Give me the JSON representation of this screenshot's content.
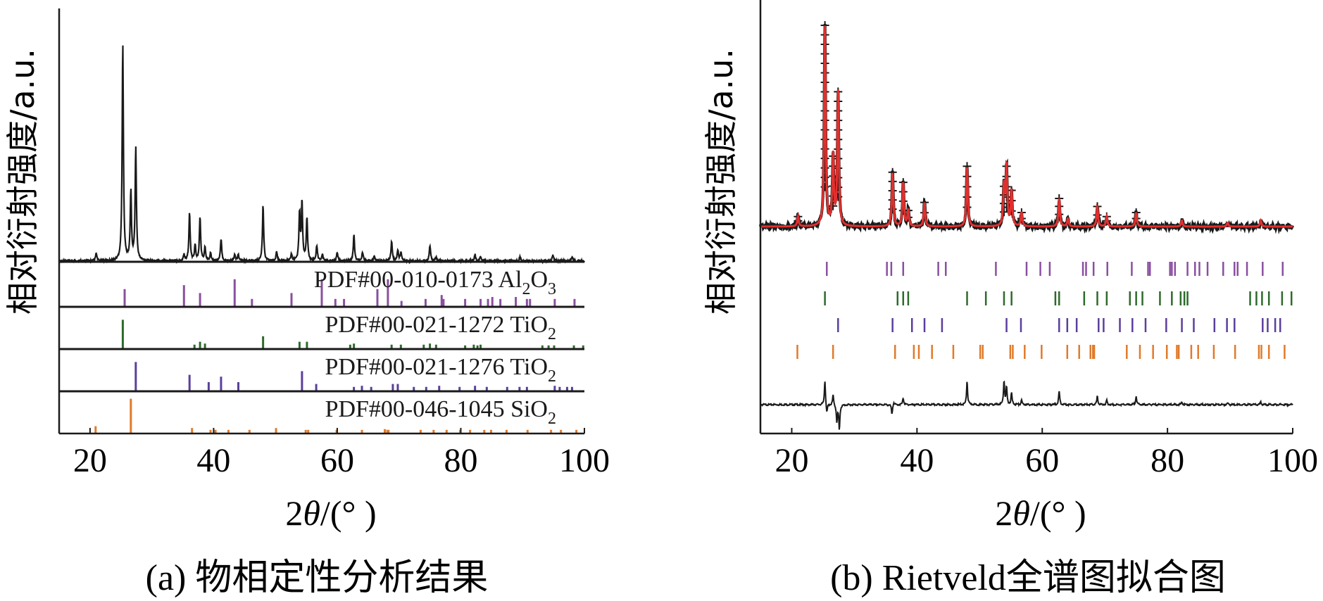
{
  "chart_data": [
    {
      "id": "a",
      "type": "line",
      "caption": "(a) 物相定性分析结果",
      "ylabel": "相对衍射强度/a.u.",
      "xlabel_parts": [
        "2",
        "θ",
        "/(°",
        " )"
      ],
      "xlim": [
        15,
        100
      ],
      "xticks": [
        20,
        40,
        60,
        80,
        100
      ],
      "pattern": {
        "peaks": [
          [
            21.0,
            0.035
          ],
          [
            25.3,
            1.0
          ],
          [
            26.6,
            0.32
          ],
          [
            27.4,
            0.52
          ],
          [
            35.2,
            0.03
          ],
          [
            36.1,
            0.22
          ],
          [
            37.0,
            0.07
          ],
          [
            37.8,
            0.2
          ],
          [
            38.6,
            0.06
          ],
          [
            39.5,
            0.04
          ],
          [
            41.2,
            0.1
          ],
          [
            43.4,
            0.03
          ],
          [
            44.0,
            0.03
          ],
          [
            48.0,
            0.26
          ],
          [
            50.2,
            0.04
          ],
          [
            52.6,
            0.03
          ],
          [
            53.9,
            0.22
          ],
          [
            54.3,
            0.27
          ],
          [
            55.1,
            0.2
          ],
          [
            56.7,
            0.07
          ],
          [
            57.6,
            0.03
          ],
          [
            60.0,
            0.04
          ],
          [
            62.7,
            0.12
          ],
          [
            64.1,
            0.04
          ],
          [
            66.0,
            0.02
          ],
          [
            68.8,
            0.09
          ],
          [
            69.8,
            0.05
          ],
          [
            70.3,
            0.04
          ],
          [
            75.0,
            0.07
          ],
          [
            76.0,
            0.02
          ],
          [
            82.3,
            0.03
          ],
          [
            83.2,
            0.02
          ],
          [
            89.6,
            0.02
          ],
          [
            94.9,
            0.03
          ],
          [
            98.0,
            0.02
          ]
        ]
      },
      "references": [
        {
          "label": "PDF#00-010-0173 Al",
          "formula_sub": "2",
          "formula_mid": "O",
          "formula_sub2": "3",
          "color": "#8a4fa0",
          "sticks": [
            [
              25.6,
              0.45
            ],
            [
              35.2,
              0.55
            ],
            [
              37.8,
              0.35
            ],
            [
              43.4,
              0.7
            ],
            [
              46.2,
              0.2
            ],
            [
              52.6,
              0.35
            ],
            [
              57.5,
              0.7
            ],
            [
              59.7,
              0.2
            ],
            [
              61.1,
              0.2
            ],
            [
              66.5,
              0.45
            ],
            [
              68.2,
              0.7
            ],
            [
              70.4,
              0.15
            ],
            [
              74.3,
              0.2
            ],
            [
              76.9,
              0.3
            ],
            [
              77.2,
              0.2
            ],
            [
              80.7,
              0.2
            ],
            [
              83.2,
              0.2
            ],
            [
              84.4,
              0.2
            ],
            [
              85.1,
              0.25
            ],
            [
              86.4,
              0.2
            ],
            [
              88.9,
              0.25
            ],
            [
              90.7,
              0.2
            ],
            [
              91.2,
              0.2
            ],
            [
              95.2,
              0.2
            ],
            [
              98.4,
              0.2
            ]
          ]
        },
        {
          "label": "PDF#00-021-1272 TiO",
          "formula_sub": "2",
          "formula_mid": "",
          "formula_sub2": "",
          "color": "#2d6b2a",
          "sticks": [
            [
              25.3,
              0.8
            ],
            [
              36.9,
              0.12
            ],
            [
              37.8,
              0.2
            ],
            [
              38.6,
              0.15
            ],
            [
              48.0,
              0.35
            ],
            [
              53.9,
              0.2
            ],
            [
              55.1,
              0.2
            ],
            [
              62.1,
              0.12
            ],
            [
              62.7,
              0.15
            ],
            [
              68.8,
              0.12
            ],
            [
              70.3,
              0.12
            ],
            [
              74.0,
              0.12
            ],
            [
              75.0,
              0.15
            ],
            [
              76.0,
              0.12
            ],
            [
              80.7,
              0.1
            ],
            [
              82.1,
              0.12
            ],
            [
              82.7,
              0.1
            ],
            [
              83.2,
              0.12
            ],
            [
              93.2,
              0.1
            ],
            [
              94.2,
              0.1
            ],
            [
              95.1,
              0.1
            ],
            [
              98.3,
              0.1
            ],
            [
              99.8,
              0.1
            ]
          ]
        },
        {
          "label": "PDF#00-021-1276 TiO",
          "formula_sub": "2",
          "formula_mid": "",
          "formula_sub2": "",
          "color": "#5a3f9c",
          "sticks": [
            [
              27.4,
              0.8
            ],
            [
              36.1,
              0.45
            ],
            [
              39.2,
              0.25
            ],
            [
              41.2,
              0.4
            ],
            [
              44.0,
              0.25
            ],
            [
              54.3,
              0.55
            ],
            [
              56.6,
              0.2
            ],
            [
              62.7,
              0.12
            ],
            [
              64.0,
              0.15
            ],
            [
              65.5,
              0.12
            ],
            [
              69.0,
              0.2
            ],
            [
              69.8,
              0.2
            ],
            [
              72.4,
              0.12
            ],
            [
              74.4,
              0.12
            ],
            [
              76.5,
              0.15
            ],
            [
              79.8,
              0.12
            ],
            [
              82.3,
              0.15
            ],
            [
              84.2,
              0.12
            ],
            [
              87.5,
              0.12
            ],
            [
              89.5,
              0.12
            ],
            [
              90.7,
              0.12
            ],
            [
              95.2,
              0.15
            ],
            [
              96.0,
              0.12
            ],
            [
              97.2,
              0.12
            ],
            [
              98.0,
              0.12
            ]
          ]
        },
        {
          "label": "PDF#00-046-1045 SiO",
          "formula_sub": "2",
          "formula_mid": "",
          "formula_sub2": "",
          "color": "#e07a2a",
          "sticks": [
            [
              20.9,
              0.2
            ],
            [
              26.6,
              0.95
            ],
            [
              36.5,
              0.15
            ],
            [
              39.5,
              0.1
            ],
            [
              40.3,
              0.1
            ],
            [
              42.4,
              0.1
            ],
            [
              45.8,
              0.1
            ],
            [
              50.1,
              0.15
            ],
            [
              54.9,
              0.1
            ],
            [
              55.3,
              0.1
            ],
            [
              59.9,
              0.1
            ],
            [
              64.0,
              0.1
            ],
            [
              67.7,
              0.12
            ],
            [
              68.1,
              0.1
            ],
            [
              68.3,
              0.1
            ],
            [
              73.5,
              0.1
            ],
            [
              75.6,
              0.1
            ],
            [
              77.7,
              0.1
            ],
            [
              79.9,
              0.1
            ],
            [
              81.5,
              0.1
            ],
            [
              83.8,
              0.1
            ],
            [
              84.9,
              0.1
            ],
            [
              87.4,
              0.1
            ],
            [
              90.8,
              0.1
            ],
            [
              94.6,
              0.1
            ],
            [
              96.2,
              0.1
            ],
            [
              98.7,
              0.1
            ]
          ]
        }
      ]
    },
    {
      "id": "b",
      "type": "line",
      "caption": "(b) Rietveld全谱图拟合图",
      "ylabel": "相对衍射强度/a.u.",
      "xlabel_parts": [
        "2",
        "θ",
        "/(°",
        " )"
      ],
      "xlim": [
        15,
        100
      ],
      "xticks": [
        20,
        40,
        60,
        80,
        100
      ],
      "observed_color": "#1a1a1a",
      "calculated_color": "#e0302e",
      "difference_color": "#1a1a1a",
      "pattern": {
        "peaks": [
          [
            21.0,
            0.05
          ],
          [
            25.3,
            1.0
          ],
          [
            26.6,
            0.35
          ],
          [
            27.4,
            0.67
          ],
          [
            36.1,
            0.27
          ],
          [
            37.8,
            0.22
          ],
          [
            38.6,
            0.08
          ],
          [
            41.2,
            0.12
          ],
          [
            48.0,
            0.3
          ],
          [
            53.9,
            0.2
          ],
          [
            54.3,
            0.3
          ],
          [
            55.1,
            0.18
          ],
          [
            56.7,
            0.07
          ],
          [
            62.7,
            0.14
          ],
          [
            64.1,
            0.04
          ],
          [
            68.8,
            0.1
          ],
          [
            70.3,
            0.05
          ],
          [
            75.0,
            0.07
          ],
          [
            82.3,
            0.03
          ],
          [
            89.6,
            0.02
          ],
          [
            94.9,
            0.03
          ]
        ]
      },
      "difference": [
        [
          25.3,
          0.3
        ],
        [
          25.6,
          -0.12
        ],
        [
          26.6,
          0.12
        ],
        [
          27.2,
          -0.2
        ],
        [
          27.6,
          -0.3
        ],
        [
          36.0,
          -0.12
        ],
        [
          36.3,
          0.04
        ],
        [
          37.8,
          0.08
        ],
        [
          48.0,
          0.28
        ],
        [
          53.9,
          0.28
        ],
        [
          54.3,
          0.2
        ],
        [
          55.1,
          0.14
        ],
        [
          56.7,
          0.05
        ],
        [
          62.7,
          0.16
        ],
        [
          68.8,
          0.1
        ],
        [
          70.3,
          0.05
        ],
        [
          75.0,
          0.1
        ],
        [
          82.3,
          0.03
        ],
        [
          89.6,
          0.02
        ],
        [
          94.9,
          0.03
        ]
      ],
      "tick_rows": [
        {
          "color": "#8a4fa0",
          "positions": [
            25.6,
            35.2,
            35.9,
            37.8,
            43.4,
            44.6,
            52.6,
            57.5,
            59.7,
            61.2,
            66.5,
            67.0,
            68.2,
            70.4,
            74.3,
            76.9,
            77.2,
            80.4,
            80.7,
            81.2,
            83.2,
            84.4,
            85.1,
            86.4,
            88.9,
            90.7,
            91.2,
            92.7,
            95.2,
            98.4
          ]
        },
        {
          "color": "#2d6b2a",
          "positions": [
            25.3,
            36.9,
            37.8,
            38.6,
            48.0,
            51.0,
            53.9,
            55.1,
            62.1,
            62.7,
            66.7,
            68.8,
            70.3,
            74.0,
            75.0,
            76.0,
            78.8,
            80.7,
            82.1,
            82.7,
            83.2,
            93.2,
            94.2,
            95.1,
            96.2,
            98.3,
            99.8
          ]
        },
        {
          "color": "#5a3f9c",
          "positions": [
            27.4,
            36.1,
            39.2,
            41.2,
            44.0,
            54.3,
            56.6,
            62.7,
            64.0,
            65.5,
            69.0,
            69.8,
            72.4,
            74.4,
            76.5,
            79.8,
            82.3,
            84.2,
            87.5,
            89.5,
            90.7,
            95.2,
            96.0,
            97.2,
            98.0
          ]
        },
        {
          "color": "#e07a2a",
          "positions": [
            20.9,
            26.6,
            36.5,
            39.5,
            40.3,
            42.4,
            45.8,
            50.1,
            50.5,
            54.9,
            55.3,
            57.2,
            59.9,
            64.0,
            65.9,
            67.7,
            68.1,
            68.3,
            73.5,
            75.6,
            77.7,
            79.9,
            81.5,
            81.8,
            83.8,
            84.9,
            87.4,
            90.8,
            94.6,
            95.0,
            96.2,
            98.7
          ]
        }
      ]
    }
  ]
}
